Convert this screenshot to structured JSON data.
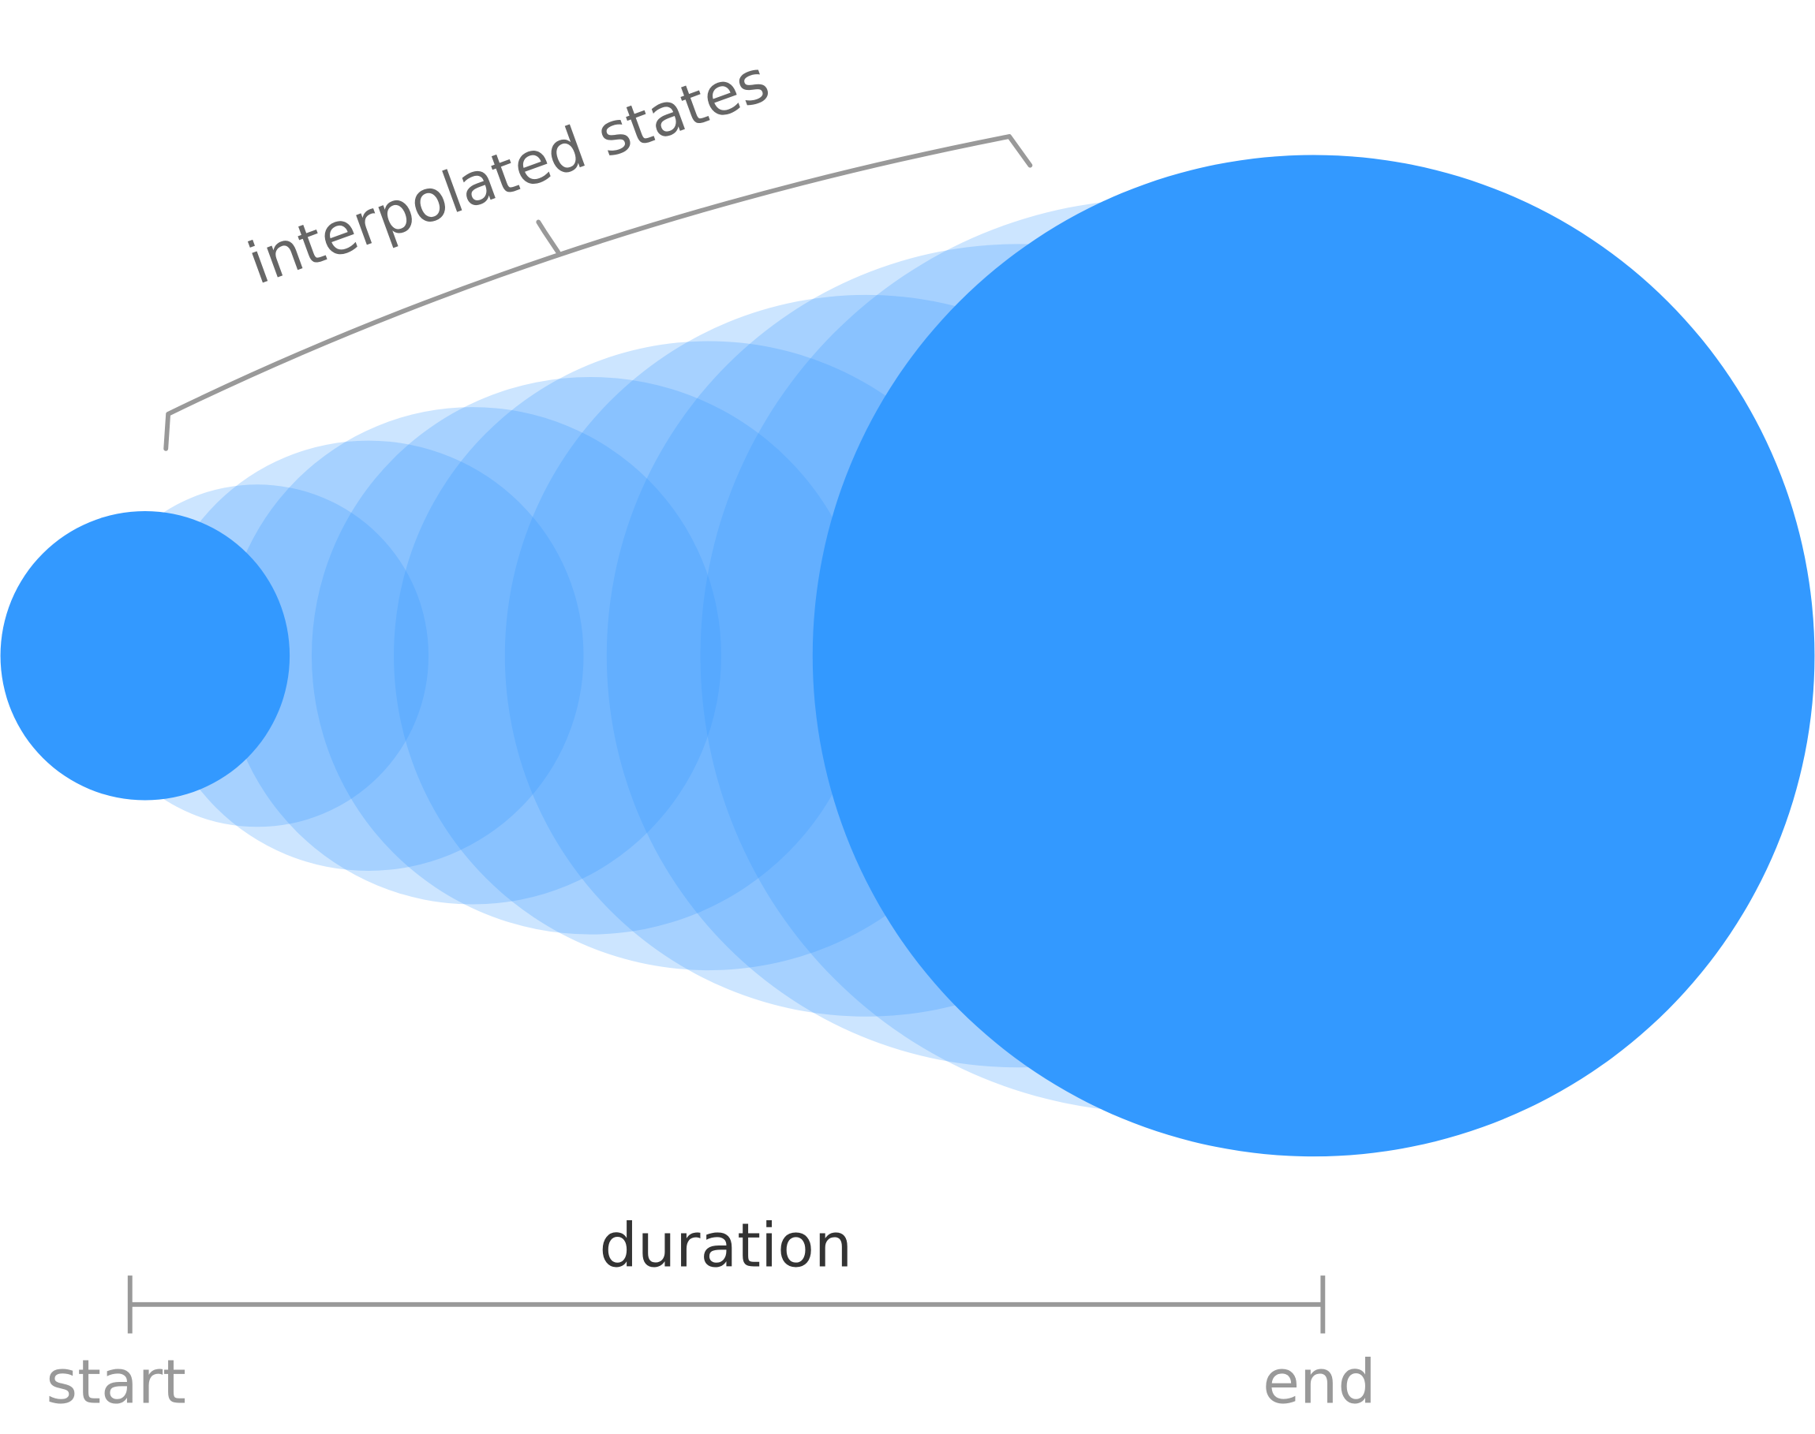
{
  "labels": {
    "interpolated": "interpolated states",
    "duration": "duration",
    "start": "start",
    "end": "end"
  }
}
